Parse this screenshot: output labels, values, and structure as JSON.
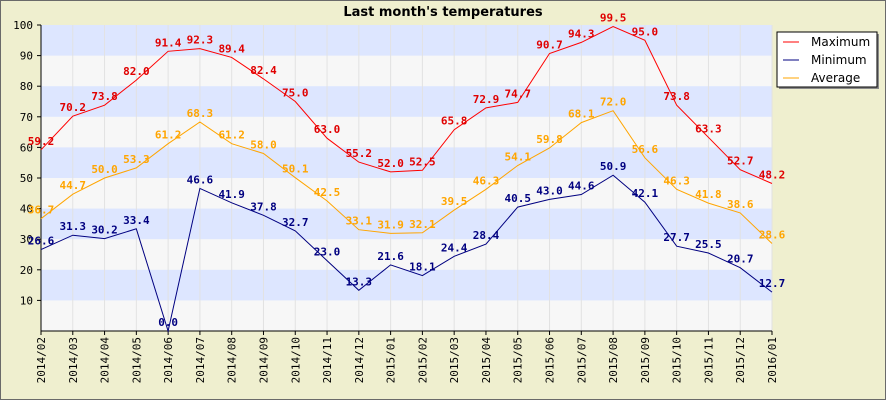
{
  "chart_data": {
    "type": "line",
    "title": "Last month's temperatures",
    "xlabel": "",
    "ylabel": "",
    "ylim": [
      0,
      100
    ],
    "yticks": [
      10,
      20,
      30,
      40,
      50,
      60,
      70,
      80,
      90,
      100
    ],
    "grid": true,
    "legend_position": "top-right",
    "categories": [
      "2014/02",
      "2014/03",
      "2014/04",
      "2014/05",
      "2014/06",
      "2014/07",
      "2014/08",
      "2014/09",
      "2014/10",
      "2014/11",
      "2014/12",
      "2015/01",
      "2015/02",
      "2015/03",
      "2015/04",
      "2015/05",
      "2015/06",
      "2015/07",
      "2015/08",
      "2015/09",
      "2015/10",
      "2015/11",
      "2015/12",
      "2016/01"
    ],
    "series": [
      {
        "name": "Maximum",
        "color": "#ff0000",
        "label_color": "#e00000",
        "values": [
          59.2,
          70.2,
          73.8,
          82.0,
          91.4,
          92.3,
          89.4,
          82.4,
          75.0,
          63.0,
          55.2,
          52.0,
          52.5,
          65.8,
          72.9,
          74.7,
          90.7,
          94.3,
          99.5,
          95.0,
          73.8,
          63.3,
          52.7,
          48.2
        ]
      },
      {
        "name": "Minimum",
        "color": "#000080",
        "label_color": "#000080",
        "values": [
          26.6,
          31.3,
          30.2,
          33.4,
          0.0,
          46.6,
          41.9,
          37.8,
          32.7,
          23.0,
          13.3,
          21.6,
          18.1,
          24.4,
          28.4,
          40.5,
          43.0,
          44.6,
          50.9,
          42.1,
          27.7,
          25.5,
          20.7,
          12.7
        ]
      },
      {
        "name": "Average",
        "color": "#ffa500",
        "label_color": "#ffa500",
        "values": [
          36.7,
          44.7,
          50.0,
          53.3,
          61.2,
          68.3,
          61.2,
          58.0,
          50.1,
          42.5,
          33.1,
          31.9,
          32.1,
          39.5,
          46.3,
          54.1,
          59.8,
          68.1,
          72.0,
          56.6,
          46.3,
          41.8,
          38.6,
          28.6
        ]
      }
    ]
  }
}
